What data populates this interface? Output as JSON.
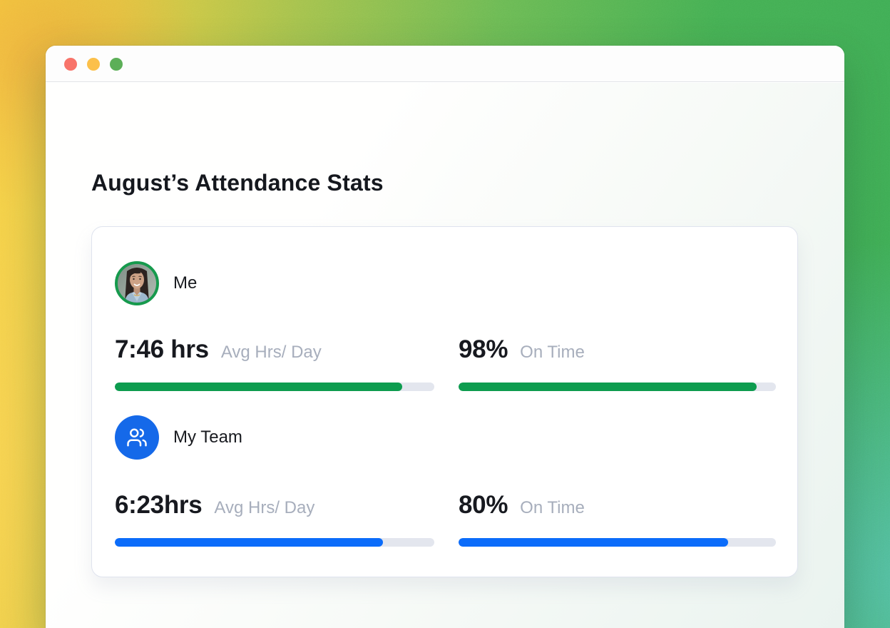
{
  "page": {
    "title": "August’s Attendance Stats"
  },
  "window": {
    "close_label": "close",
    "minimize_label": "minimize",
    "zoom_label": "zoom"
  },
  "card": {
    "sections": [
      {
        "id": "me",
        "label": "Me",
        "avatar": "woman-photo-avatar",
        "accent": "#0d9c4f",
        "stats": [
          {
            "value": "7:46 hrs",
            "label": "Avg Hrs/ Day",
            "bar_percent": 90
          },
          {
            "value": "98%",
            "label": "On Time",
            "bar_percent": 94
          }
        ]
      },
      {
        "id": "team",
        "label": "My Team",
        "icon": "users-icon",
        "accent": "#0b6cfa",
        "stats": [
          {
            "value": "6:23hrs",
            "label": "Avg Hrs/ Day",
            "bar_percent": 84
          },
          {
            "value": "80%",
            "label": "On Time",
            "bar_percent": 85
          }
        ]
      }
    ]
  },
  "colors": {
    "bar_track": "#e3e6ee",
    "team_icon_bg": "#1569e9",
    "avatar_ring": "#169a4d",
    "traffic_red": "#f8746a",
    "traffic_yellow": "#fcc04a",
    "traffic_green": "#5caf58"
  }
}
